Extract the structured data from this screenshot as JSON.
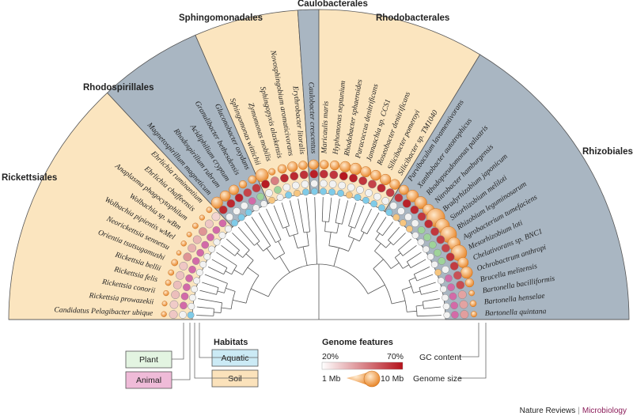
{
  "orders": [
    {
      "name": "Rickettsiales",
      "color": "#fbe5bf"
    },
    {
      "name": "Rhodospirillales",
      "color": "#a9b6c2"
    },
    {
      "name": "Sphingomonadales",
      "color": "#fbe5bf"
    },
    {
      "name": "Caulobacterales",
      "color": "#a9b6c2"
    },
    {
      "name": "Rhodobacterales",
      "color": "#fbe5bf"
    },
    {
      "name": "Rhizobiales",
      "color": "#a9b6c2"
    }
  ],
  "species": [
    {
      "name": "Pelagibacter ubique",
      "prefix": "Candidatus",
      "order": 0,
      "gc": 30,
      "size": 1.3,
      "habitat": "aquatic"
    },
    {
      "name": "Rickettsia prowazekii",
      "order": 0,
      "gc": 29,
      "size": 1.1,
      "habitat": "animal"
    },
    {
      "name": "Rickettsia conorii",
      "order": 0,
      "gc": 32,
      "size": 1.3,
      "habitat": "animal"
    },
    {
      "name": "Rickettsia felis",
      "order": 0,
      "gc": 32,
      "size": 1.5,
      "habitat": "animal"
    },
    {
      "name": "Rickettsia bellii",
      "order": 0,
      "gc": 31,
      "size": 1.5,
      "habitat": "animal"
    },
    {
      "name": "Orientia tsutsugamushi",
      "order": 0,
      "gc": 30,
      "size": 2.0,
      "habitat": "animal"
    },
    {
      "name": "Neorickettsia sennetsu",
      "order": 0,
      "gc": 41,
      "size": 0.9,
      "habitat": "animal"
    },
    {
      "name": "Wolbachia pipientis wMel",
      "order": 0,
      "gc": 35,
      "size": 1.3,
      "habitat": "animal"
    },
    {
      "name": "Wolbachia sp. wBm",
      "order": 0,
      "gc": 34,
      "size": 1.1,
      "habitat": "animal"
    },
    {
      "name": "Anaplasma phagocytophilum",
      "order": 0,
      "gc": 41,
      "size": 1.5,
      "habitat": "animal"
    },
    {
      "name": "Ehrlichia chaffeensis",
      "order": 0,
      "gc": 30,
      "size": 1.2,
      "habitat": "animal"
    },
    {
      "name": "Ehrlichia ruminantium",
      "order": 0,
      "gc": 27,
      "size": 1.5,
      "habitat": "animal"
    },
    {
      "name": "Magnetospirillum magneticum",
      "order": 1,
      "gc": 65,
      "size": 5.0,
      "habitat": "aquatic"
    },
    {
      "name": "Rhodospirillum rubrum",
      "order": 1,
      "gc": 65,
      "size": 4.4,
      "habitat": "aquatic"
    },
    {
      "name": "Acidiphilium cryptum",
      "order": 1,
      "gc": 67,
      "size": 4.0,
      "habitat": "aquatic"
    },
    {
      "name": "Granulibacter bethesdensis",
      "order": 1,
      "gc": 59,
      "size": 2.7,
      "habitat": "animal"
    },
    {
      "name": "Gluconobacter oxydans",
      "order": 1,
      "gc": 61,
      "size": 2.9,
      "habitat": "plant"
    },
    {
      "name": "Sphingomonas wittichii",
      "order": 2,
      "gc": 68,
      "size": 5.9,
      "habitat": "soil"
    },
    {
      "name": "Zymomonas mobilis",
      "order": 2,
      "gc": 46,
      "size": 2.1,
      "habitat": "plant"
    },
    {
      "name": "Sphingopyxis alaskensis",
      "order": 2,
      "gc": 65,
      "size": 3.4,
      "habitat": "aquatic"
    },
    {
      "name": "Novosphingobium aromaticivorans",
      "order": 2,
      "gc": 65,
      "size": 4.2,
      "habitat": "soil"
    },
    {
      "name": "Erythrobacter litoralis",
      "order": 2,
      "gc": 63,
      "size": 3.3,
      "habitat": "aquatic"
    },
    {
      "name": "Caulobacter crescentus",
      "order": 3,
      "gc": 67,
      "size": 4.0,
      "habitat": "aquatic"
    },
    {
      "name": "Maricaulis maris",
      "order": 4,
      "gc": 63,
      "size": 3.4,
      "habitat": "aquatic"
    },
    {
      "name": "Hyphomonas neptunium",
      "order": 4,
      "gc": 62,
      "size": 3.7,
      "habitat": "aquatic"
    },
    {
      "name": "Rhodobacter sphaeroides",
      "order": 4,
      "gc": 69,
      "size": 4.6,
      "habitat": "aquatic"
    },
    {
      "name": "Paracoccus denitrificans",
      "order": 4,
      "gc": 67,
      "size": 5.2,
      "habitat": "soil"
    },
    {
      "name": "Jannaschia sp. CCS1",
      "order": 4,
      "gc": 62,
      "size": 4.4,
      "habitat": "aquatic"
    },
    {
      "name": "Roseobacter denitrificans",
      "order": 4,
      "gc": 59,
      "size": 4.3,
      "habitat": "aquatic"
    },
    {
      "name": "Silicibacter pomeroyi",
      "order": 4,
      "gc": 64,
      "size": 4.6,
      "habitat": "aquatic"
    },
    {
      "name": "Silicibacter sp. TM1040",
      "order": 4,
      "gc": 60,
      "size": 4.2,
      "habitat": "aquatic"
    },
    {
      "name": "Parvibaculum lavamentivorans",
      "order": 5,
      "gc": 62,
      "size": 3.9,
      "habitat": "aquatic"
    },
    {
      "name": "Xanthobacter autotrophicus",
      "order": 5,
      "gc": 67,
      "size": 5.3,
      "habitat": "soil"
    },
    {
      "name": "Rhodopseudomonas palustris",
      "order": 5,
      "gc": 65,
      "size": 5.5,
      "habitat": "soil"
    },
    {
      "name": "Nitrobacter hamburgensis",
      "order": 5,
      "gc": 62,
      "size": 5.0,
      "habitat": "soil"
    },
    {
      "name": "Bradyrhizobium japonicum",
      "order": 5,
      "gc": 64,
      "size": 9.1,
      "habitat": "plant"
    },
    {
      "name": "Sinorhizobium meliloti",
      "order": 5,
      "gc": 62,
      "size": 6.7,
      "habitat": "plant"
    },
    {
      "name": "Rhizobium leguminosarum",
      "order": 5,
      "gc": 61,
      "size": 7.8,
      "habitat": "plant"
    },
    {
      "name": "Agrobacterium tumefaciens",
      "order": 5,
      "gc": 59,
      "size": 5.7,
      "habitat": "plant"
    },
    {
      "name": "Mesorhizobium loti",
      "order": 5,
      "gc": 63,
      "size": 7.6,
      "habitat": "plant"
    },
    {
      "name": "Chelativorans sp. BNC1",
      "order": 5,
      "gc": 61,
      "size": 4.4,
      "habitat": "soil"
    },
    {
      "name": "Ochrobactrum anthropi",
      "order": 5,
      "gc": 56,
      "size": 5.2,
      "habitat": "animal"
    },
    {
      "name": "Brucella melitensis",
      "order": 5,
      "gc": 57,
      "size": 3.3,
      "habitat": "animal"
    },
    {
      "name": "Bartonella bacilliformis",
      "order": 5,
      "gc": 38,
      "size": 1.4,
      "habitat": "animal"
    },
    {
      "name": "Bartonella henselae",
      "order": 5,
      "gc": 38,
      "size": 1.9,
      "habitat": "animal"
    },
    {
      "name": "Bartonella quintana",
      "order": 5,
      "gc": 39,
      "size": 1.6,
      "habitat": "animal"
    }
  ],
  "habitats": {
    "title": "Habitats",
    "items": [
      {
        "key": "plant",
        "label": "Plant",
        "color": "#9fd39a"
      },
      {
        "key": "animal",
        "label": "Animal",
        "color": "#d36aa8"
      },
      {
        "key": "aquatic",
        "label": "Aquatic",
        "color": "#7fcbe8"
      },
      {
        "key": "soil",
        "label": "Soil",
        "color": "#f6c57f"
      }
    ]
  },
  "genome_features": {
    "title": "Genome features",
    "gc_min": "20%",
    "gc_max": "70%",
    "gc_label": "GC content",
    "size_min": "1 Mb",
    "size_max": "10 Mb",
    "size_label": "Genome size",
    "gc_low_color": "#fdf4ee",
    "gc_high_color": "#b5121b"
  },
  "footer": {
    "journal": "Nature Reviews",
    "section": "Microbiology"
  }
}
